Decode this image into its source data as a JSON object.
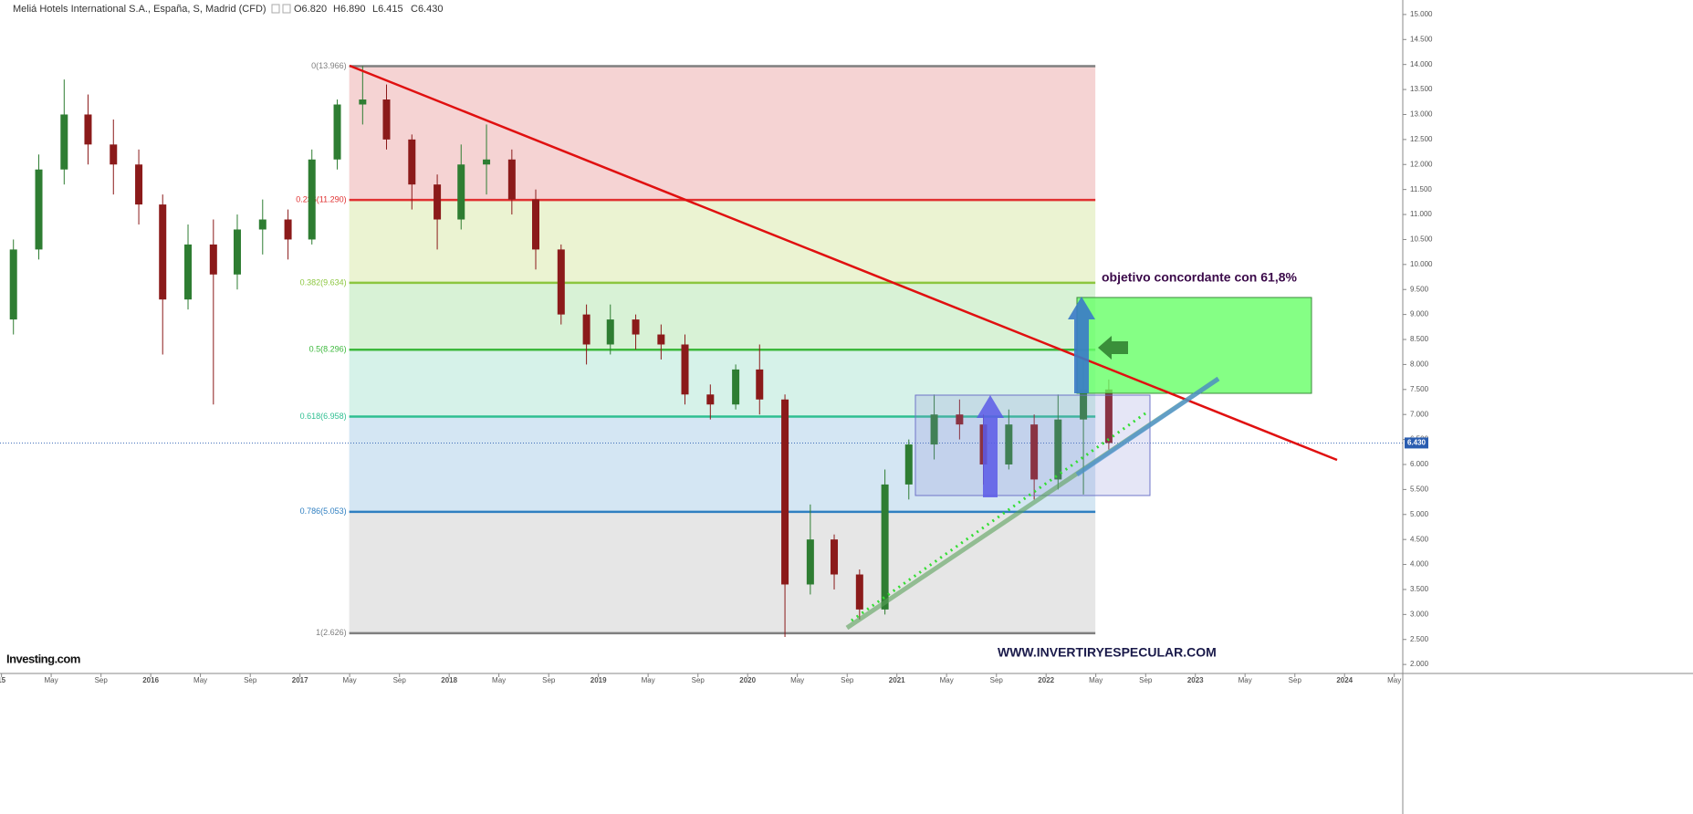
{
  "header": {
    "title": "Meliá Hotels International S.A., España, S, Madrid (CFD)",
    "open": "O6.820",
    "high": "H6.890",
    "low": "L6.415",
    "close": "C6.430"
  },
  "chart_data": {
    "type": "candlestick",
    "annotation": "objetivo concordante con 61,8%",
    "watermark": "WWW.INVERTIRYESPECULAR.COM",
    "logo": "Investing.com",
    "up_color": "#2e7d32",
    "down_color": "#8b1a1a",
    "x": [
      2015.08,
      2015.25,
      2015.42,
      2015.58,
      2015.75,
      2015.92,
      2016.08,
      2016.25,
      2016.42,
      2016.58,
      2016.75,
      2016.92,
      2017.08,
      2017.25,
      2017.42,
      2017.58,
      2017.75,
      2017.92,
      2018.08,
      2018.25,
      2018.42,
      2018.58,
      2018.75,
      2018.92,
      2019.08,
      2019.25,
      2019.42,
      2019.58,
      2019.75,
      2019.92,
      2020.08,
      2020.25,
      2020.42,
      2020.58,
      2020.75,
      2020.92,
      2021.08,
      2021.25,
      2021.42,
      2021.58,
      2021.75,
      2021.92,
      2022.08,
      2022.25,
      2022.42
    ],
    "open": [
      8.9,
      10.3,
      11.9,
      13.0,
      12.4,
      12.0,
      11.2,
      9.3,
      10.4,
      9.8,
      10.7,
      10.9,
      10.5,
      12.1,
      13.2,
      13.3,
      12.5,
      11.6,
      10.9,
      12.0,
      12.1,
      11.3,
      10.3,
      9.0,
      8.4,
      8.9,
      8.6,
      8.4,
      7.4,
      7.2,
      7.9,
      7.3,
      3.6,
      4.5,
      3.8,
      3.1,
      5.6,
      6.4,
      7.0,
      6.8,
      6.0,
      6.8,
      5.7,
      6.9,
      7.5
    ],
    "high": [
      10.5,
      12.2,
      13.7,
      13.4,
      12.9,
      12.3,
      11.4,
      10.8,
      10.9,
      11.0,
      11.3,
      11.1,
      12.3,
      13.3,
      13.97,
      13.6,
      12.6,
      11.8,
      12.4,
      12.8,
      12.3,
      11.5,
      10.4,
      9.2,
      9.2,
      9.0,
      8.8,
      8.6,
      7.6,
      8.0,
      8.4,
      7.4,
      5.2,
      4.6,
      3.9,
      5.9,
      6.5,
      7.4,
      7.3,
      7.0,
      7.1,
      7.0,
      7.4,
      8.1,
      7.7
    ],
    "low": [
      8.6,
      10.1,
      11.6,
      12.0,
      11.4,
      10.8,
      8.2,
      9.1,
      7.2,
      9.5,
      10.2,
      10.1,
      10.4,
      11.9,
      12.8,
      12.3,
      11.1,
      10.3,
      10.7,
      11.4,
      11.0,
      9.9,
      8.8,
      8.0,
      8.2,
      8.3,
      8.1,
      7.2,
      6.9,
      7.1,
      7.0,
      2.55,
      3.4,
      3.5,
      2.9,
      3.0,
      5.3,
      6.1,
      6.5,
      5.6,
      5.9,
      5.3,
      5.5,
      5.4,
      6.3
    ],
    "close": [
      10.3,
      11.9,
      13.0,
      12.4,
      12.0,
      11.2,
      9.3,
      10.4,
      9.8,
      10.7,
      10.9,
      10.5,
      12.1,
      13.2,
      13.3,
      12.5,
      11.6,
      10.9,
      12.0,
      12.1,
      11.3,
      10.3,
      9.0,
      8.4,
      8.9,
      8.6,
      8.4,
      7.4,
      7.2,
      7.9,
      7.3,
      3.6,
      4.5,
      3.8,
      3.1,
      5.6,
      6.4,
      7.0,
      6.8,
      6.0,
      6.8,
      5.7,
      6.9,
      7.5,
      6.43
    ],
    "last_price": {
      "value": 6.43,
      "label": "6.430"
    },
    "fib": {
      "x": [
        2017.33,
        2022.33
      ],
      "levels": [
        {
          "value": 13.966,
          "label": "0(13.966)",
          "color": "#7f7f7f"
        },
        {
          "value": 11.29,
          "label": "0.236(11.290)",
          "color": "#e03030"
        },
        {
          "value": 9.634,
          "label": "0.382(9.634)",
          "color": "#8cc63f"
        },
        {
          "value": 8.296,
          "label": "0.5(8.296)",
          "color": "#3cb83c"
        },
        {
          "value": 6.958,
          "label": "0.618(6.958)",
          "color": "#2ebf91"
        },
        {
          "value": 5.053,
          "label": "0.786(5.053)",
          "color": "#2f7fc1"
        },
        {
          "value": 2.626,
          "label": "1(2.626)",
          "color": "#7f7f7f"
        }
      ],
      "zones": [
        "#f5d3d3",
        "#ebf3d2",
        "#d8f2d6",
        "#d6f2e9",
        "#d4e6f3",
        "#e6e6e6"
      ]
    },
    "xlim": [
      2014.99,
      2024.39
    ],
    "xticks": [
      {
        "value": 2015,
        "label": "15"
      },
      {
        "value": 2015.333,
        "label": "May"
      },
      {
        "value": 2015.667,
        "label": "Sep"
      },
      2016,
      {
        "value": 2016.333,
        "label": "May"
      },
      {
        "value": 2016.667,
        "label": "Sep"
      },
      2017,
      {
        "value": 2017.333,
        "label": "May"
      },
      {
        "value": 2017.667,
        "label": "Sep"
      },
      2018,
      {
        "value": 2018.333,
        "label": "May"
      },
      {
        "value": 2018.667,
        "label": "Sep"
      },
      2019,
      {
        "value": 2019.333,
        "label": "May"
      },
      {
        "value": 2019.667,
        "label": "Sep"
      },
      2020,
      {
        "value": 2020.333,
        "label": "May"
      },
      {
        "value": 2020.667,
        "label": "Sep"
      },
      2021,
      {
        "value": 2021.333,
        "label": "May"
      },
      {
        "value": 2021.667,
        "label": "Sep"
      },
      2022,
      {
        "value": 2022.333,
        "label": "May"
      },
      {
        "value": 2022.667,
        "label": "Sep"
      },
      2023,
      {
        "value": 2023.333,
        "label": "May"
      },
      {
        "value": 2023.667,
        "label": "Sep"
      },
      2024,
      {
        "value": 2024.333,
        "label": "May"
      }
    ],
    "ylim": [
      1.82,
      15.29
    ],
    "yticks": [
      {
        "value": 2,
        "label": "2.000"
      },
      {
        "value": 2.5,
        "label": "2.500"
      },
      {
        "value": 3,
        "label": "3.000"
      },
      {
        "value": 3.5,
        "label": "3.500"
      },
      {
        "value": 4,
        "label": "4.000"
      },
      {
        "value": 4.5,
        "label": "4.500"
      },
      {
        "value": 5,
        "label": "5.000"
      },
      {
        "value": 5.5,
        "label": "5.500"
      },
      {
        "value": 6,
        "label": "6.000"
      },
      {
        "value": 6.5,
        "label": "6.500"
      },
      {
        "value": 7,
        "label": "7.000"
      },
      {
        "value": 7.5,
        "label": "7.500"
      },
      {
        "value": 8,
        "label": "8.000"
      },
      {
        "value": 8.5,
        "label": "8.500"
      },
      {
        "value": 9,
        "label": "9.000"
      },
      {
        "value": 9.5,
        "label": "9.500"
      },
      {
        "value": 10,
        "label": "10.000"
      },
      {
        "value": 10.5,
        "label": "10.500"
      },
      {
        "value": 11,
        "label": "11.000"
      },
      {
        "value": 11.5,
        "label": "11.500"
      },
      {
        "value": 12,
        "label": "12.000"
      },
      {
        "value": 12.5,
        "label": "12.500"
      },
      {
        "value": 13,
        "label": "13.000"
      },
      {
        "value": 13.5,
        "label": "13.500"
      },
      {
        "value": 14,
        "label": "14.000"
      },
      {
        "value": 14.5,
        "label": "14.500"
      },
      {
        "value": 15,
        "label": "15.000"
      }
    ]
  }
}
